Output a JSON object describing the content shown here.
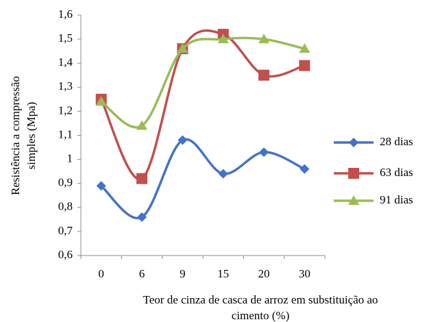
{
  "chart_data": {
    "type": "line",
    "x_label": [
      "Teor de cinza de casca de arroz em substituição ao",
      "cimento (%)"
    ],
    "y_label": [
      "Resistência a compressão",
      "simples (Mpa)"
    ],
    "categories": [
      "0",
      "6",
      "9",
      "15",
      "20",
      "30"
    ],
    "series": [
      {
        "name": "28 dias",
        "color": "#4472c4",
        "marker": "diamond",
        "values": [
          0.89,
          0.76,
          1.08,
          0.94,
          1.03,
          0.96
        ]
      },
      {
        "name": "63 dias",
        "color": "#c0504d",
        "marker": "square",
        "values": [
          1.25,
          0.92,
          1.46,
          1.52,
          1.35,
          1.39
        ]
      },
      {
        "name": "91 dias",
        "color": "#9bbb59",
        "marker": "triangle",
        "values": [
          1.24,
          1.14,
          1.46,
          1.5,
          1.5,
          1.46
        ]
      }
    ],
    "ylim": [
      0.6,
      1.6
    ],
    "yticks": [
      {
        "value": 0.6,
        "label": "0,6"
      },
      {
        "value": 0.7,
        "label": "0,7"
      },
      {
        "value": 0.8,
        "label": "0,8"
      },
      {
        "value": 0.9,
        "label": "0,9"
      },
      1,
      {
        "value": 1.1,
        "label": "1,1"
      },
      {
        "value": 1.2,
        "label": "1,2"
      },
      {
        "value": 1.3,
        "label": "1,3"
      },
      {
        "value": 1.4,
        "label": "1,4"
      },
      {
        "value": 1.5,
        "label": "1,5"
      },
      {
        "value": 1.6,
        "label": "1,6"
      }
    ],
    "grid": false,
    "legend": "right",
    "smooth": true
  }
}
